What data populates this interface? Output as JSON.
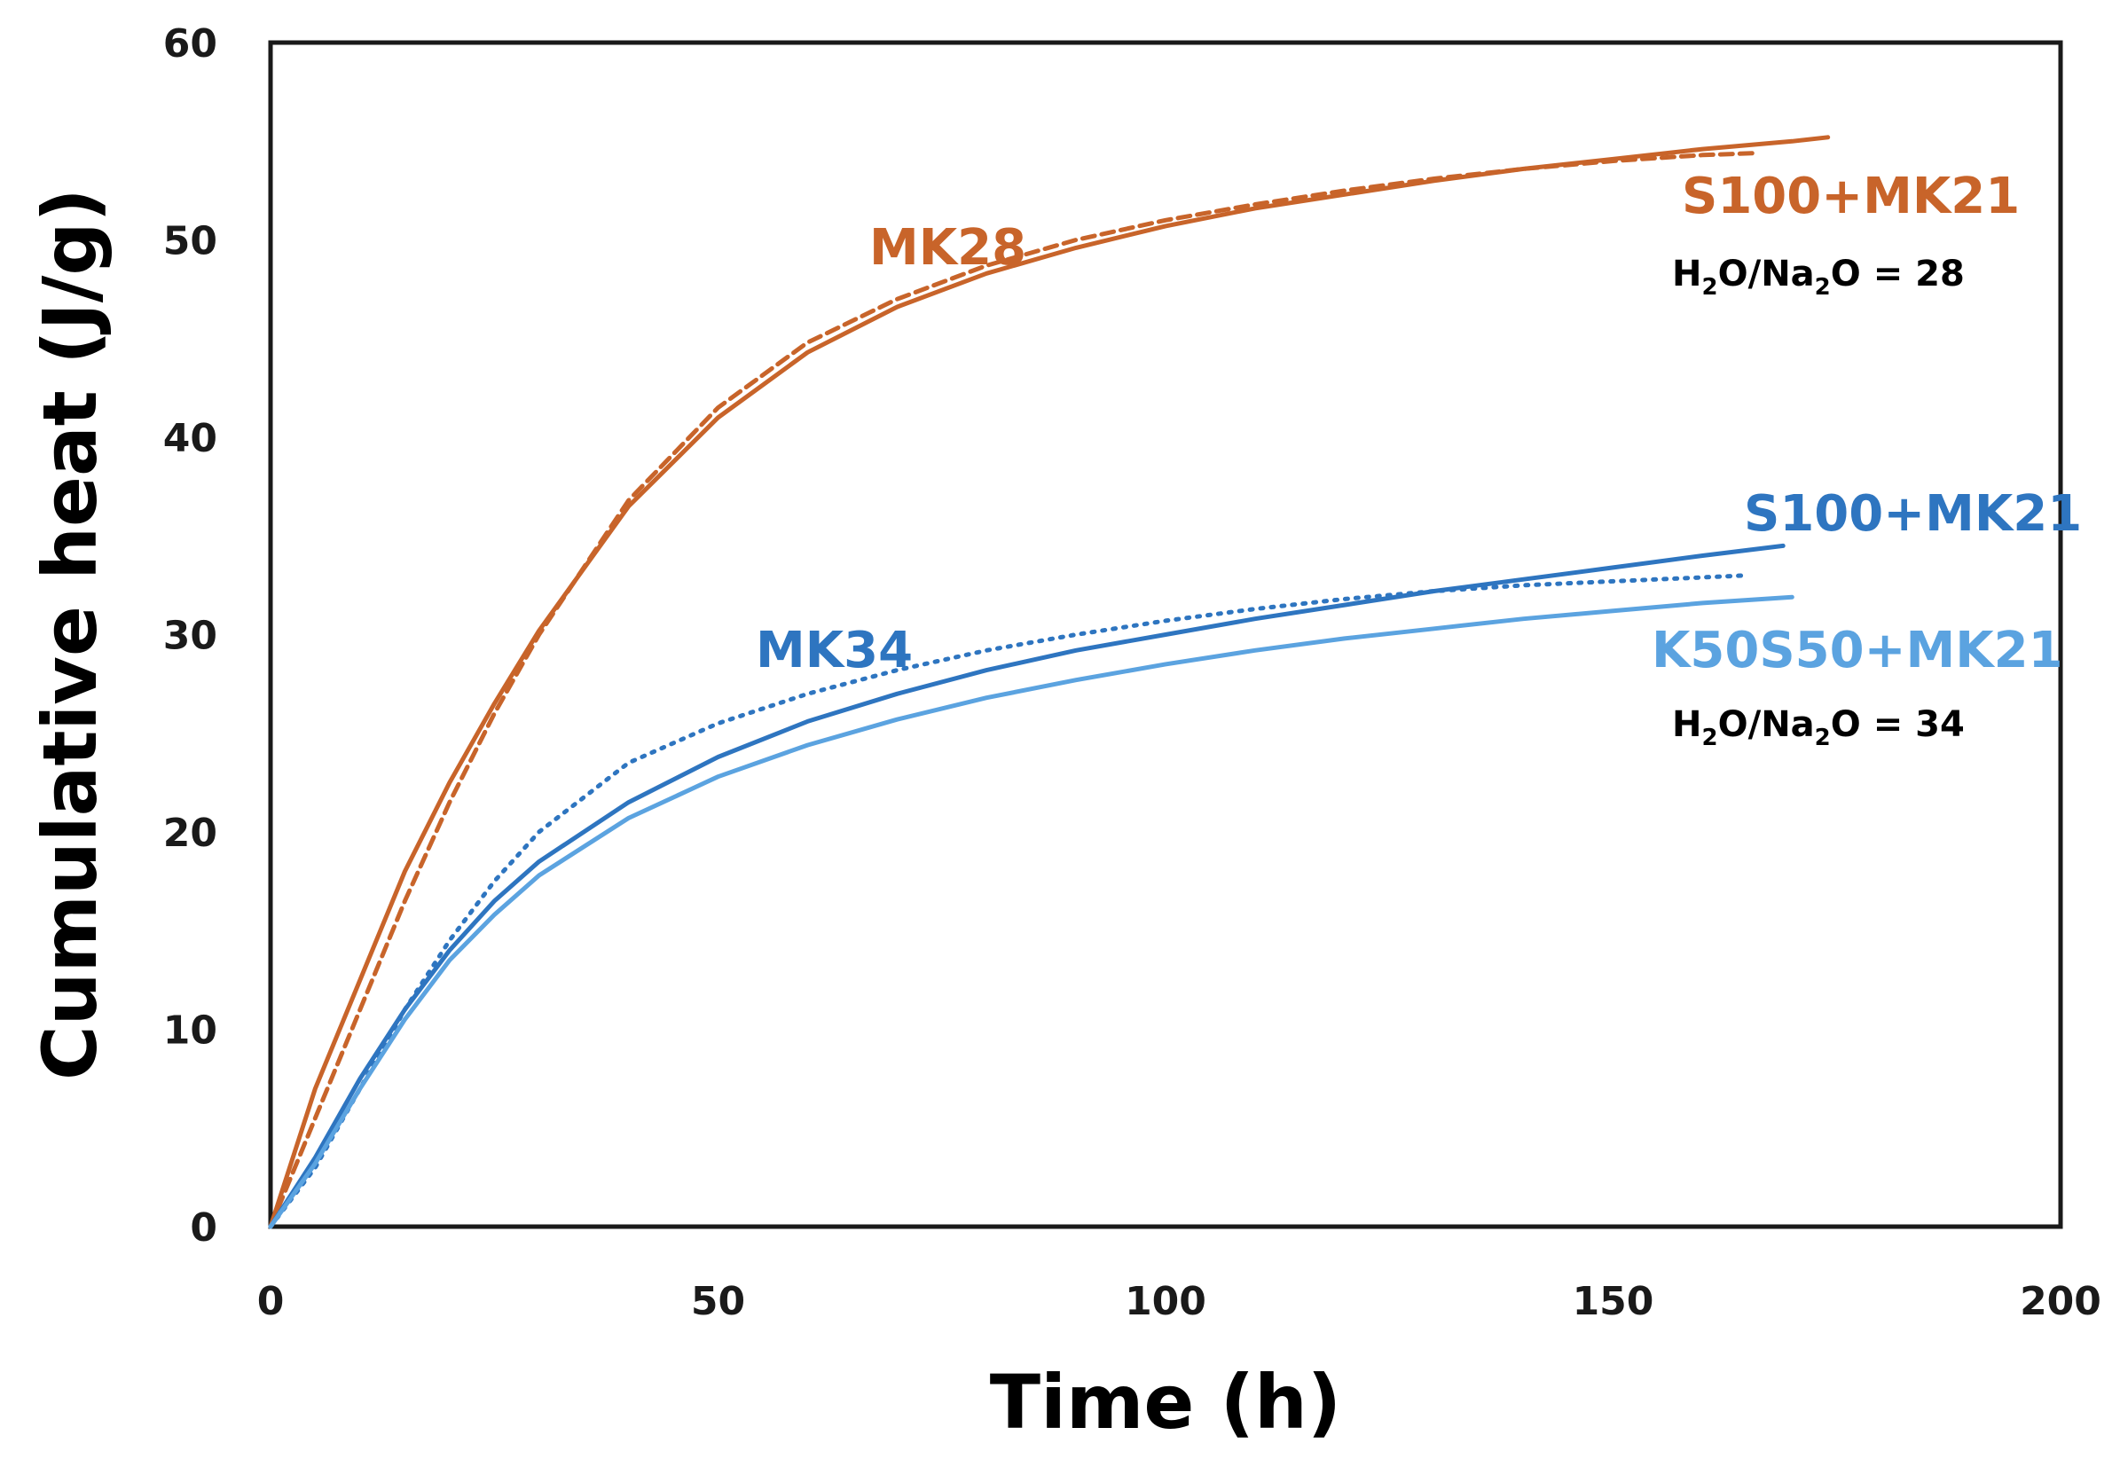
{
  "chart_data": {
    "type": "line",
    "title": "",
    "xlabel": "Time (h)",
    "ylabel": "Cumulative heat (J/g)",
    "xlim": [
      0,
      200
    ],
    "ylim": [
      0,
      60
    ],
    "x_ticks": [
      0,
      50,
      100,
      150,
      200
    ],
    "y_ticks": [
      0,
      10,
      20,
      30,
      40,
      50,
      60
    ],
    "grid": false,
    "colors": {
      "orange": "#C8642A",
      "blue_dark": "#2E75C0",
      "blue_light": "#5BA3E0"
    },
    "series": [
      {
        "name": "MK28 solid",
        "group": "MK28",
        "color": "#C8642A",
        "style": "solid",
        "x": [
          0,
          5,
          10,
          15,
          20,
          25,
          30,
          40,
          50,
          60,
          70,
          80,
          90,
          100,
          110,
          120,
          130,
          140,
          150,
          160,
          170,
          174
        ],
        "y": [
          0,
          7,
          12.5,
          18,
          22.5,
          26.5,
          30.2,
          36.5,
          41,
          44.3,
          46.6,
          48.3,
          49.6,
          50.7,
          51.6,
          52.3,
          53,
          53.6,
          54.1,
          54.6,
          55,
          55.2
        ]
      },
      {
        "name": "MK28 dashed",
        "group": "MK28",
        "color": "#C8642A",
        "style": "dashed",
        "x": [
          0,
          5,
          10,
          15,
          20,
          25,
          30,
          40,
          50,
          60,
          70,
          80,
          90,
          100,
          110,
          120,
          130,
          140,
          150,
          160,
          166
        ],
        "y": [
          0,
          5.5,
          11,
          16.5,
          21.5,
          26,
          30,
          36.8,
          41.5,
          44.8,
          47,
          48.7,
          50,
          51,
          51.8,
          52.5,
          53.1,
          53.6,
          54,
          54.3,
          54.4
        ]
      },
      {
        "name": "MK34 S100+MK21",
        "group": "MK34",
        "color": "#2E75C0",
        "style": "solid",
        "x": [
          0,
          5,
          10,
          15,
          20,
          25,
          30,
          40,
          50,
          60,
          70,
          80,
          90,
          100,
          110,
          120,
          130,
          140,
          150,
          160,
          169
        ],
        "y": [
          0,
          3.5,
          7.5,
          11,
          14,
          16.5,
          18.5,
          21.5,
          23.8,
          25.6,
          27,
          28.2,
          29.2,
          30,
          30.8,
          31.5,
          32.2,
          32.8,
          33.4,
          34,
          34.5
        ]
      },
      {
        "name": "MK34 dotted",
        "group": "MK34",
        "color": "#2E75C0",
        "style": "dotted",
        "x": [
          0,
          5,
          10,
          15,
          20,
          25,
          30,
          40,
          50,
          60,
          70,
          80,
          90,
          100,
          110,
          120,
          130,
          140,
          150,
          160,
          165
        ],
        "y": [
          0,
          3,
          7,
          11,
          14.5,
          17.5,
          20,
          23.5,
          25.5,
          27,
          28.2,
          29.2,
          30,
          30.7,
          31.3,
          31.8,
          32.2,
          32.5,
          32.7,
          32.9,
          33
        ]
      },
      {
        "name": "MK34 K50S50+MK21",
        "group": "MK34",
        "color": "#5BA3E0",
        "style": "solid",
        "x": [
          0,
          5,
          10,
          15,
          20,
          25,
          30,
          40,
          50,
          60,
          70,
          80,
          90,
          100,
          110,
          120,
          130,
          140,
          150,
          160,
          170
        ],
        "y": [
          0,
          3.2,
          7,
          10.5,
          13.5,
          15.8,
          17.8,
          20.7,
          22.8,
          24.4,
          25.7,
          26.8,
          27.7,
          28.5,
          29.2,
          29.8,
          30.3,
          30.8,
          31.2,
          31.6,
          31.9
        ]
      }
    ],
    "annotations": {
      "mk28": "MK28",
      "mk28_end": "S100+MK21",
      "mk28_ratio_a": "H",
      "mk28_ratio_sub1": "2",
      "mk28_ratio_b": "O/Na",
      "mk28_ratio_sub2": "2",
      "mk28_ratio_c": "O = 28",
      "mk34": "MK34",
      "mk34_end1": "S100+MK21",
      "mk34_end2": "K50S50+MK21",
      "mk34_ratio_a": "H",
      "mk34_ratio_sub1": "2",
      "mk34_ratio_b": "O/Na",
      "mk34_ratio_sub2": "2",
      "mk34_ratio_c": "O = 34"
    }
  }
}
